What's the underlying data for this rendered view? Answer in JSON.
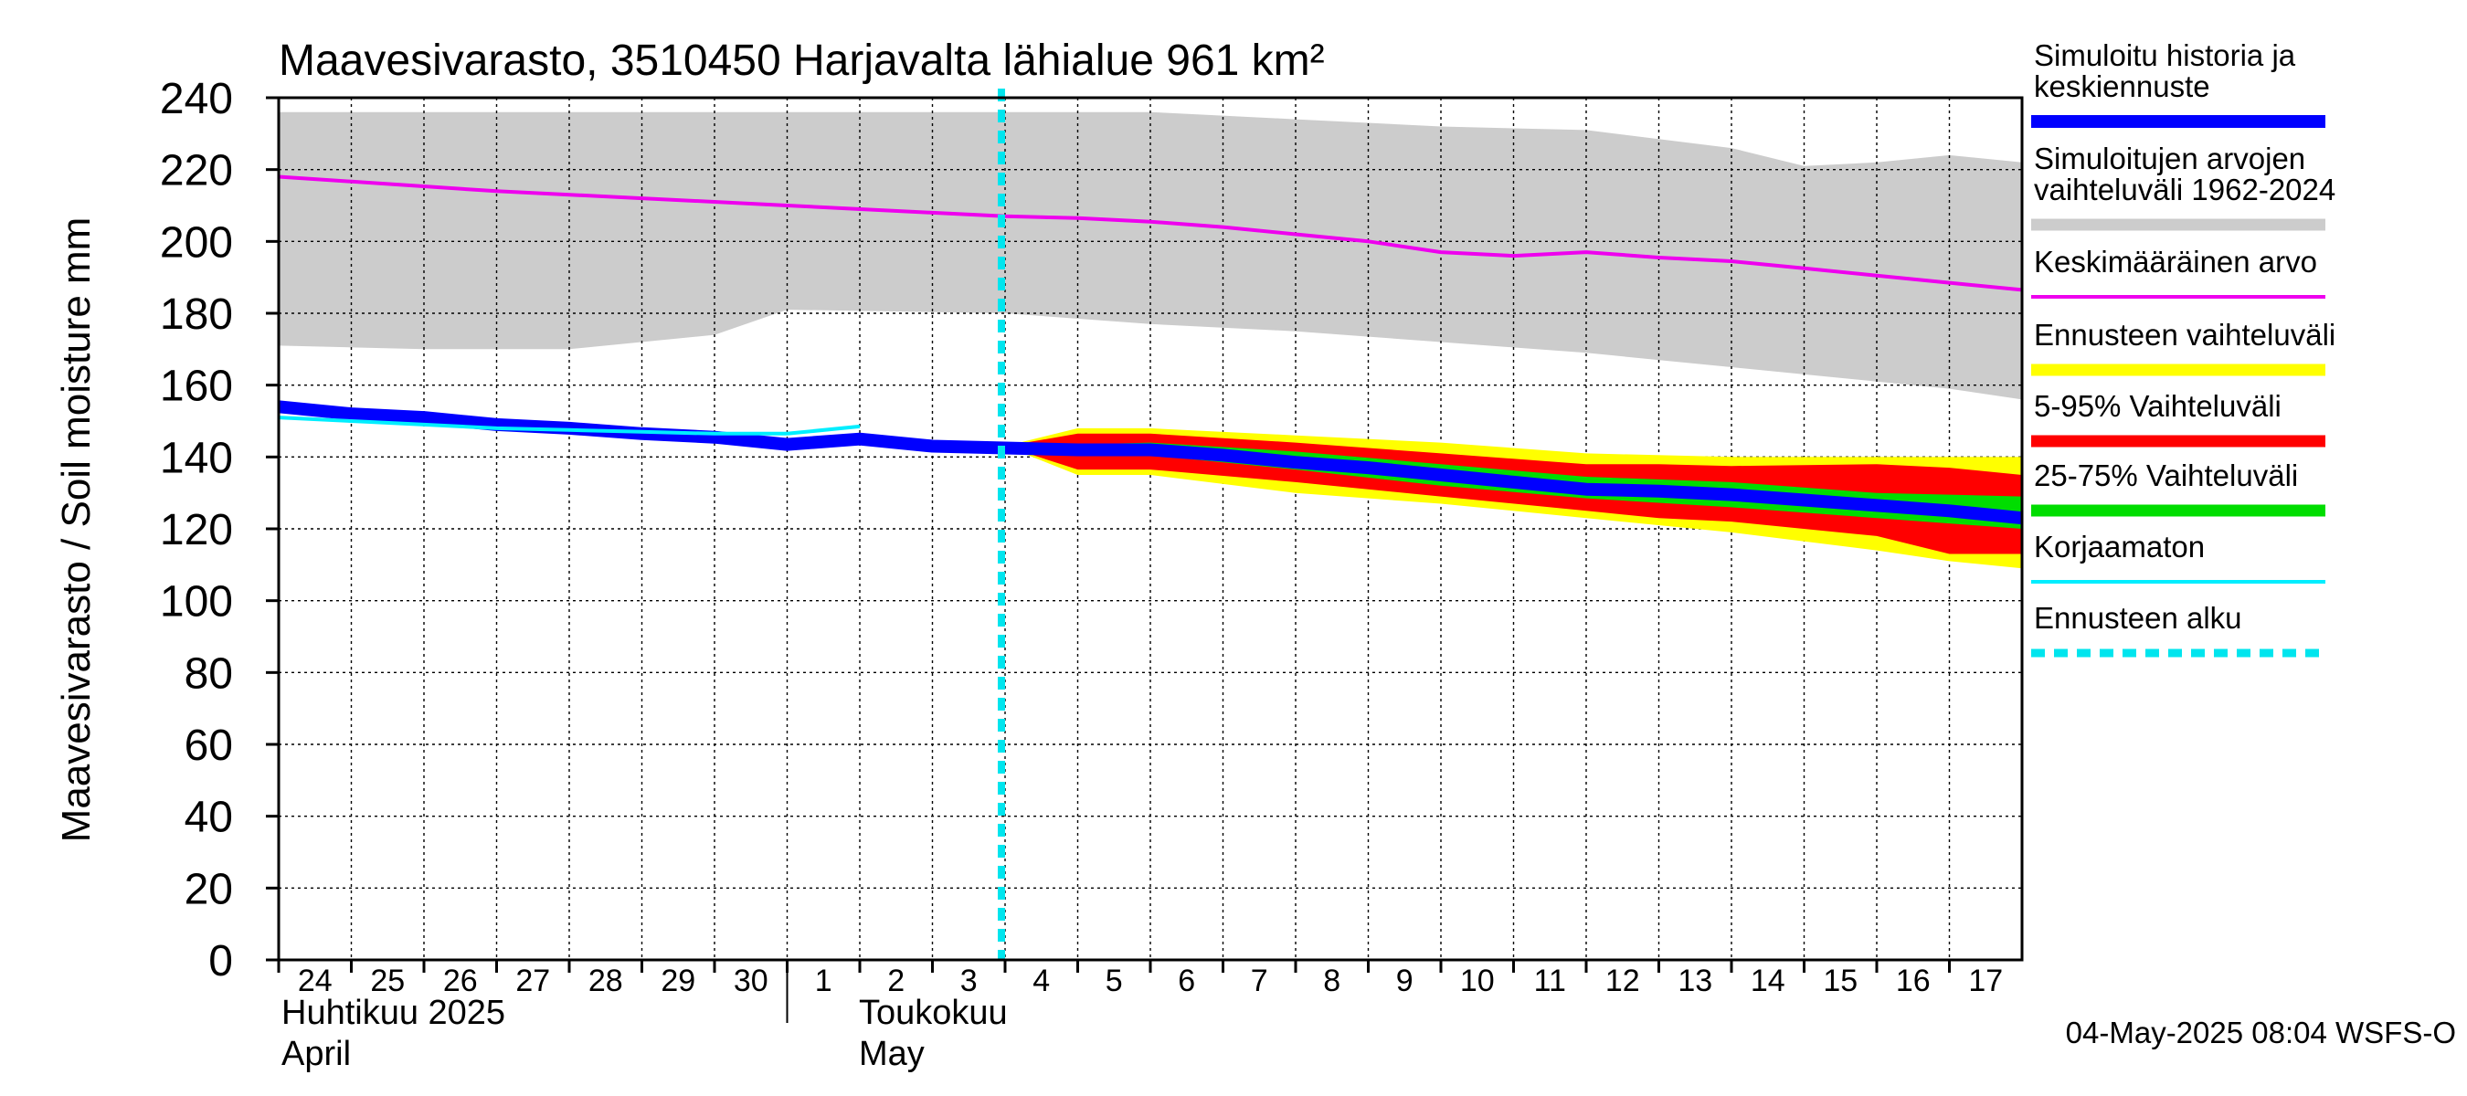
{
  "chart_data": {
    "type": "line",
    "title": "Maavesivarasto, 3510450 Harjavalta lähialue 961 km²",
    "ylabel": "Maavesivarasto / Soil moisture   mm",
    "ylim": [
      0,
      240
    ],
    "yticks": [
      0,
      20,
      40,
      60,
      80,
      100,
      120,
      140,
      160,
      180,
      200,
      220,
      240
    ],
    "xlim": [
      "2025-04-24",
      "2025-05-18"
    ],
    "x_tick_labels": [
      "24",
      "25",
      "26",
      "27",
      "28",
      "29",
      "30",
      "1",
      "2",
      "3",
      "4",
      "5",
      "6",
      "7",
      "8",
      "9",
      "10",
      "11",
      "12",
      "13",
      "14",
      "15",
      "16",
      "17"
    ],
    "month_labels": [
      {
        "fi": "Huhtikuu  2025",
        "en": "April"
      },
      {
        "fi": "Toukokuu",
        "en": "May"
      }
    ],
    "grid": true,
    "legend_position": "right",
    "forecast_start": "2025-05-04",
    "footer": "04-May-2025 08:04 WSFS-O",
    "colors": {
      "history": "#0000ff",
      "range_hist": "#cccccc",
      "mean": "#ee00ee",
      "ens_range": "#ffff00",
      "p5_95": "#ff0000",
      "p25_75": "#00dd00",
      "uncorrected": "#00eeff",
      "forecast_start": "#00e5ee"
    },
    "legend": [
      {
        "key": "history",
        "label": "Simuloitu historia ja keskiennuste"
      },
      {
        "key": "range_hist",
        "label": "Simuloitujen arvojen vaihteluväli 1962-2024"
      },
      {
        "key": "mean",
        "label": "Keskimääräinen arvo"
      },
      {
        "key": "ens_range",
        "label": "Ennusteen vaihteluväli"
      },
      {
        "key": "p5_95",
        "label": "5-95% Vaihteluväli"
      },
      {
        "key": "p25_75",
        "label": "25-75% Vaihteluväli"
      },
      {
        "key": "uncorrected",
        "label": "Korjaamaton"
      },
      {
        "key": "forecast_start",
        "label": "Ennusteen alku"
      }
    ],
    "series": {
      "historical_range": {
        "x": [
          "2025-04-24",
          "2025-04-26",
          "2025-04-28",
          "2025-04-30",
          "2025-05-01",
          "2025-05-04",
          "2025-05-06",
          "2025-05-08",
          "2025-05-10",
          "2025-05-12",
          "2025-05-14",
          "2025-05-15",
          "2025-05-16",
          "2025-05-17",
          "2025-05-18"
        ],
        "upper": [
          236,
          236,
          236,
          236,
          236,
          236,
          236,
          234,
          232,
          231,
          226,
          221,
          222,
          224,
          222
        ],
        "lower": [
          171,
          170,
          170,
          174,
          181,
          180,
          177,
          175,
          172,
          169,
          165,
          163,
          161,
          159,
          156
        ]
      },
      "mean": {
        "x": [
          "2025-04-24",
          "2025-04-27",
          "2025-04-29",
          "2025-05-01",
          "2025-05-03",
          "2025-05-04",
          "2025-05-05",
          "2025-05-06",
          "2025-05-07",
          "2025-05-08",
          "2025-05-09",
          "2025-05-10",
          "2025-05-11",
          "2025-05-12",
          "2025-05-13",
          "2025-05-14",
          "2025-05-15",
          "2025-05-16",
          "2025-05-17",
          "2025-05-18"
        ],
        "y": [
          218,
          214,
          212,
          210,
          208,
          207,
          206.5,
          205.5,
          204,
          202,
          200,
          197,
          196,
          197,
          195.5,
          194.5,
          192.5,
          190.5,
          188.5,
          186.5
        ]
      },
      "ensemble_range": {
        "x": [
          "2025-05-04",
          "2025-05-05",
          "2025-05-06",
          "2025-05-08",
          "2025-05-10",
          "2025-05-12",
          "2025-05-14",
          "2025-05-16",
          "2025-05-17",
          "2025-05-18"
        ],
        "upper": [
          143,
          148,
          148,
          146,
          144,
          141,
          140,
          140,
          140,
          140
        ],
        "lower": [
          143,
          135,
          135,
          130,
          127,
          123,
          119,
          114,
          111,
          109
        ]
      },
      "p5_95": {
        "x": [
          "2025-05-04",
          "2025-05-05",
          "2025-05-06",
          "2025-05-08",
          "2025-05-10",
          "2025-05-12",
          "2025-05-13",
          "2025-05-14",
          "2025-05-16",
          "2025-05-17",
          "2025-05-18"
        ],
        "upper": [
          143,
          146.5,
          146.5,
          144,
          141,
          138,
          138,
          137.5,
          138,
          137,
          135
        ],
        "lower": [
          143,
          136.5,
          136.5,
          133,
          129,
          125,
          123,
          122,
          118,
          113,
          113
        ]
      },
      "p25_75": {
        "x": [
          "2025-05-04",
          "2025-05-06",
          "2025-05-08",
          "2025-05-10",
          "2025-05-12",
          "2025-05-14",
          "2025-05-16",
          "2025-05-18"
        ],
        "upper": [
          143,
          144,
          141.5,
          138,
          134.5,
          133,
          130,
          129
        ],
        "lower": [
          143,
          140.5,
          136.5,
          132,
          128.5,
          126,
          123,
          120
        ]
      },
      "history": {
        "x": [
          "2025-04-24",
          "2025-04-25",
          "2025-04-26",
          "2025-04-27",
          "2025-04-28",
          "2025-04-29",
          "2025-04-30",
          "2025-05-01",
          "2025-05-02",
          "2025-05-03",
          "2025-05-04",
          "2025-05-05",
          "2025-05-06",
          "2025-05-07",
          "2025-05-08",
          "2025-05-09",
          "2025-05-10",
          "2025-05-11",
          "2025-05-12",
          "2025-05-13",
          "2025-05-14",
          "2025-05-15",
          "2025-05-16",
          "2025-05-17",
          "2025-05-18"
        ],
        "y": [
          154,
          152,
          151,
          149,
          148,
          146.5,
          145.5,
          143.5,
          145,
          143,
          142.5,
          142,
          142,
          140.5,
          138.5,
          137,
          135,
          133,
          131,
          130.5,
          129.5,
          128,
          126.5,
          125,
          123
        ]
      },
      "uncorrected": {
        "x": [
          "2025-04-24",
          "2025-04-25",
          "2025-04-26",
          "2025-04-27",
          "2025-04-28",
          "2025-04-29",
          "2025-04-30",
          "2025-05-01",
          "2025-05-02"
        ],
        "y": [
          151,
          150,
          149,
          148,
          147.5,
          147,
          146.5,
          146.5,
          148.5
        ]
      }
    }
  }
}
